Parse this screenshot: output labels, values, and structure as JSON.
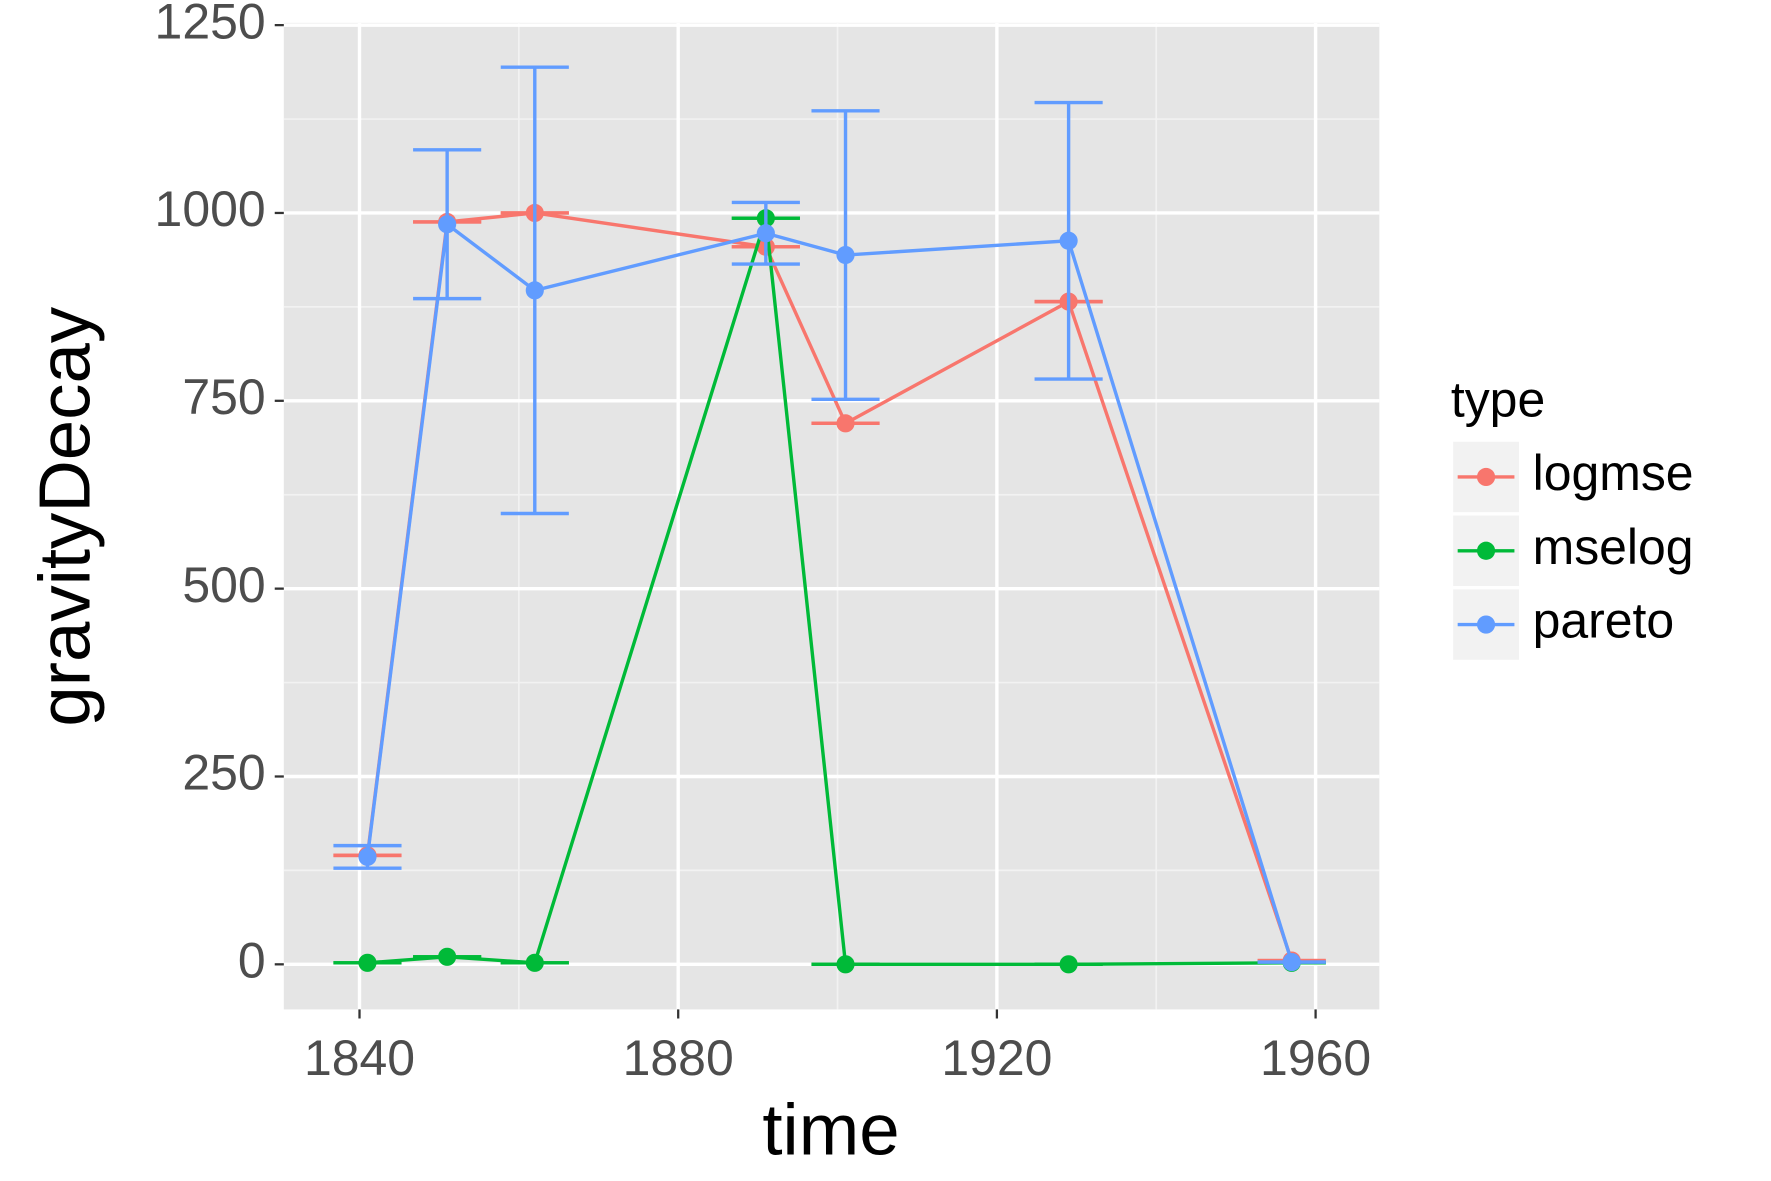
{
  "chart_data": {
    "type": "line",
    "x_label": "time",
    "y_label": "gravityDecay",
    "x": [
      1841,
      1851,
      1862,
      1891,
      1901,
      1929,
      1957
    ],
    "series": [
      {
        "name": "logmse",
        "color": "#f8766d",
        "values": [
          145,
          988,
          1000,
          955,
          720,
          882,
          5
        ],
        "errors": [
          0,
          0,
          0,
          0,
          0,
          0,
          0
        ]
      },
      {
        "name": "mselog",
        "color": "#00ba38",
        "values": [
          2,
          10,
          2,
          993,
          0,
          0,
          2
        ],
        "errors": [
          0,
          0,
          0,
          0,
          0,
          0,
          0
        ]
      },
      {
        "name": "pareto",
        "color": "#619cff",
        "values": [
          143,
          985,
          897,
          973,
          944,
          963,
          3
        ],
        "errors": [
          15,
          99,
          297,
          41,
          192,
          184,
          0
        ]
      }
    ],
    "xlim": [
      1830.5,
      1968
    ],
    "ylim": [
      -60,
      1253
    ],
    "xticks": [
      1840,
      1880,
      1920,
      1960
    ],
    "yticks": [
      0,
      250,
      500,
      750,
      1000,
      1250
    ],
    "grid": true,
    "legend_title": "type",
    "legend_position": "right"
  }
}
